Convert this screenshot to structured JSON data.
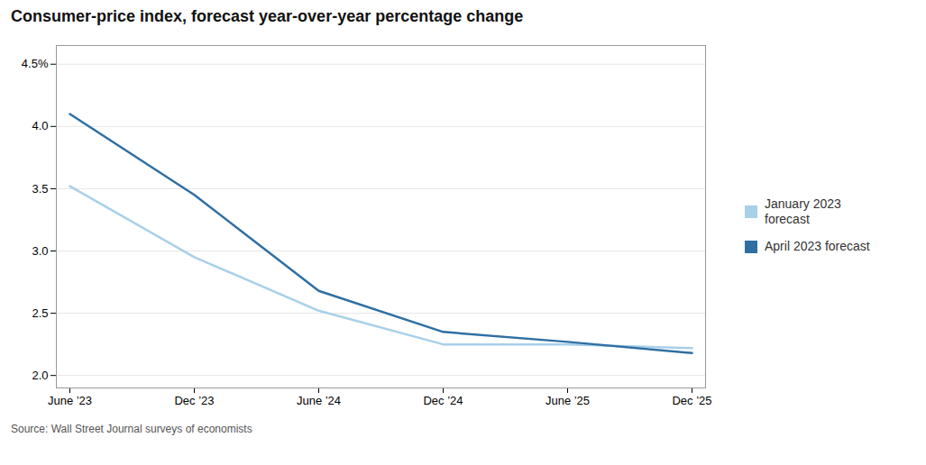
{
  "chart_data": {
    "type": "line",
    "title": "Consumer-price index, forecast year-over-year percentage change",
    "categories": [
      "June ’23",
      "Dec ’23",
      "June ’24",
      "Dec ’24",
      "June ’25",
      "Dec ’25"
    ],
    "series": [
      {
        "name": "January 2023\nforecast",
        "color": "#a8d0e8",
        "values": [
          3.52,
          2.95,
          2.52,
          2.25,
          2.25,
          2.22
        ]
      },
      {
        "name": "April 2023 forecast",
        "color": "#2e6fa3",
        "values": [
          4.1,
          3.45,
          2.68,
          2.35,
          2.27,
          2.18
        ]
      }
    ],
    "ylim": [
      1.9,
      4.65
    ],
    "yticks": [
      {
        "value": 2.0,
        "label": "2.0"
      },
      2.5,
      {
        "value": 3.0,
        "label": "3.0"
      },
      3.5,
      {
        "value": 4.0,
        "label": "4.0"
      },
      {
        "value": 4.5,
        "label": "4.5%"
      }
    ],
    "grid": true,
    "legend": "right",
    "annotations": [
      "Source: Wall Street Journal surveys of economists"
    ]
  }
}
